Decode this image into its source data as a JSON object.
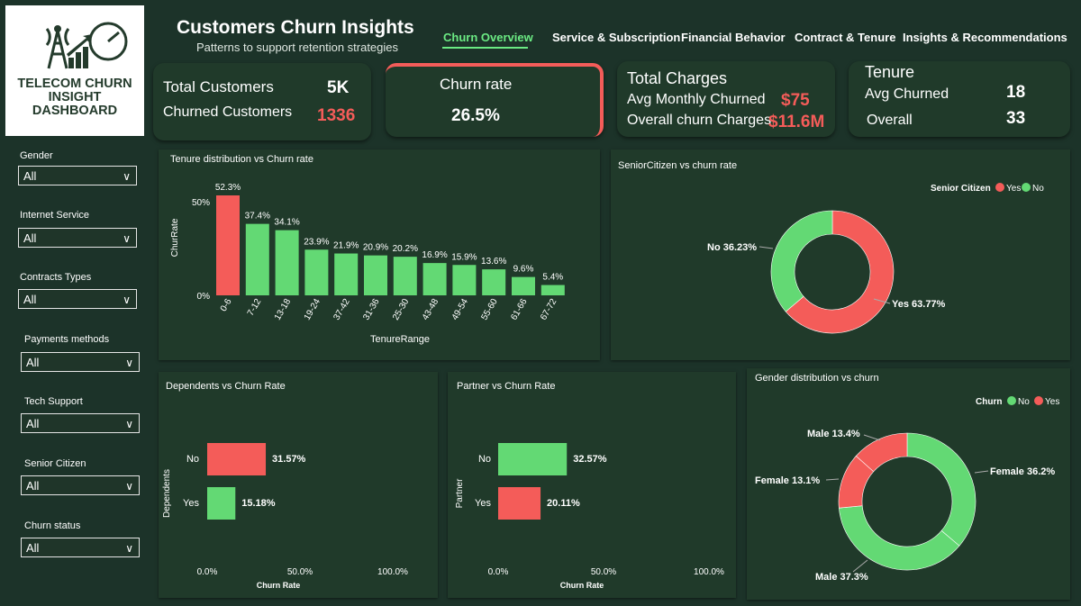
{
  "logo": {
    "line1": "TELECOM CHURN",
    "line2": "INSIGHT",
    "line3": "DASHBOARD"
  },
  "header": {
    "title": "Customers Churn Insights",
    "subtitle": "Patterns to support retention strategies"
  },
  "nav": [
    "Churn Overview",
    "Service & Subscription",
    "Financial Behavior",
    "Contract & Tenure",
    "Insights & Recommendations"
  ],
  "filters": [
    {
      "label": "Gender",
      "value": "All"
    },
    {
      "label": "Internet Service",
      "value": "All"
    },
    {
      "label": "Contracts Types",
      "value": "All"
    },
    {
      "label": "Payments methods",
      "value": "All"
    },
    {
      "label": "Tech Support",
      "value": "All"
    },
    {
      "label": "Senior Citizen",
      "value": "All"
    },
    {
      "label": "Churn status",
      "value": "All"
    }
  ],
  "kpi": {
    "total_customers_label": "Total Customers",
    "total_customers": "5K",
    "churned_label": "Churned Customers",
    "churned": "1336",
    "churn_rate_label": "Churn rate",
    "churn_rate": "26.5%",
    "charges_title": "Total Charges",
    "avg_monthly_label": "Avg Monthly Churned",
    "avg_monthly": "$75",
    "overall_charges_label": "Overall churn Charges",
    "overall_charges": "$11.6M",
    "tenure_title": "Tenure",
    "avg_churned_label": "Avg Churned",
    "avg_churned": "18",
    "overall_label": "Overall",
    "overall": "33"
  },
  "colors": {
    "red": "#f45c59",
    "green": "#63d974",
    "bg": "#1c3329",
    "panel": "#203a2a"
  },
  "chart_data": [
    {
      "type": "bar",
      "title": "Tenure distribution vs Churn rate",
      "xlabel": "TenureRange",
      "ylabel": "ChurRate",
      "categories": [
        "0-6",
        "7-12",
        "13-18",
        "19-24",
        "37-42",
        "31-36",
        "25-30",
        "43-48",
        "49-54",
        "55-60",
        "61-66",
        "67-72"
      ],
      "values": [
        52.3,
        37.4,
        34.1,
        23.9,
        21.9,
        20.9,
        20.2,
        16.9,
        15.9,
        13.6,
        9.6,
        5.4
      ],
      "labels": [
        "52.3%",
        "37.4%",
        "34.1%",
        "23.9%",
        "21.9%",
        "20.9%",
        "20.2%",
        "16.9%",
        "15.9%",
        "13.6%",
        "9.6%",
        "5.4%"
      ],
      "yticks": [
        "0%",
        "50%"
      ],
      "ylim": [
        0,
        52.3
      ]
    },
    {
      "type": "pie",
      "title": "SeniorCitizen vs churn rate",
      "legend_title": "Senior Citizen",
      "legend": [
        "Yes",
        "No"
      ],
      "slices": [
        {
          "label": "Yes",
          "value": 63.77,
          "text": "Yes 63.77%"
        },
        {
          "label": "No",
          "value": 36.23,
          "text": "No 36.23%"
        }
      ]
    },
    {
      "type": "bar",
      "title": "Dependents vs Churn Rate",
      "ylabel": "Dependents",
      "xlabel": "Churn Rate",
      "categories": [
        "No",
        "Yes"
      ],
      "values": [
        31.57,
        15.18
      ],
      "labels": [
        "31.57%",
        "15.18%"
      ],
      "xticks": [
        "0.0%",
        "50.0%",
        "100.0%"
      ],
      "xlim": [
        0,
        100
      ]
    },
    {
      "type": "bar",
      "title": "Partner vs Churn Rate",
      "ylabel": "Partner",
      "xlabel": "Churn Rate",
      "categories": [
        "No",
        "Yes"
      ],
      "values": [
        32.57,
        20.11
      ],
      "labels": [
        "32.57%",
        "20.11%"
      ],
      "xticks": [
        "0.0%",
        "50.0%",
        "100.0%"
      ],
      "xlim": [
        0,
        100
      ]
    },
    {
      "type": "pie",
      "title": "Gender distribution vs churn",
      "legend_title": "Churn",
      "legend": [
        "No",
        "Yes"
      ],
      "slices": [
        {
          "label": "Female No",
          "value": 36.2,
          "text": "Female 36.2%"
        },
        {
          "label": "Male No",
          "value": 37.3,
          "text": "Male 37.3%"
        },
        {
          "label": "Female Yes",
          "value": 13.1,
          "text": "Female 13.1%"
        },
        {
          "label": "Male Yes",
          "value": 13.4,
          "text": "Male 13.4%"
        }
      ]
    }
  ]
}
